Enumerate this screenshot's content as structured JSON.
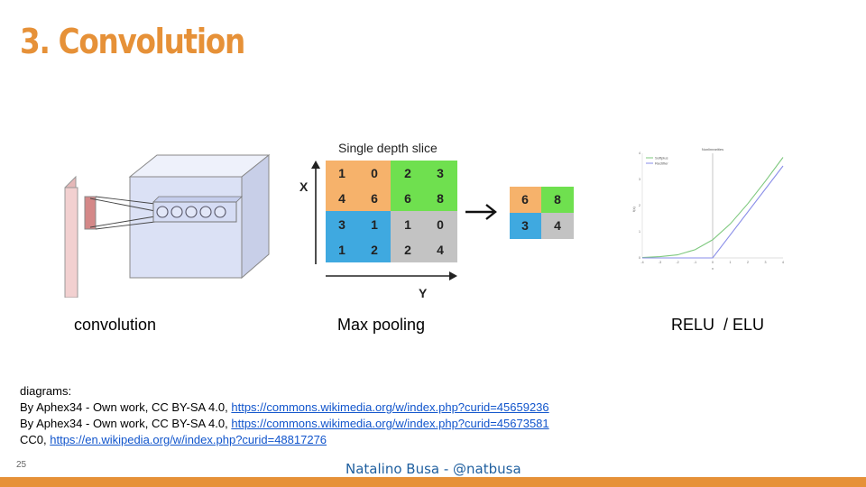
{
  "slide": {
    "title": "3. Convolution",
    "number": "25",
    "author": "Natalino Busa - @natbusa",
    "accent_color": "#e69138"
  },
  "figures": {
    "convolution": {
      "caption": "convolution"
    },
    "max_pooling": {
      "caption": "Max pooling",
      "heading": "Single depth slice",
      "x_axis_label": "X",
      "y_axis_label": "Y",
      "input_grid": [
        [
          "1",
          "0",
          "2",
          "3"
        ],
        [
          "4",
          "6",
          "6",
          "8"
        ],
        [
          "3",
          "1",
          "1",
          "0"
        ],
        [
          "1",
          "2",
          "2",
          "4"
        ]
      ],
      "output_grid": [
        [
          "6",
          "8"
        ],
        [
          "3",
          "4"
        ]
      ],
      "quadrant_colors": {
        "top_left": "#f6b26b",
        "top_right": "#6fe04f",
        "bottom_left": "#3fa9e0",
        "bottom_right": "#c3c3c3"
      }
    },
    "activation": {
      "caption": "RELU  / ELU",
      "plot_title": "Nonlinearities",
      "legend": [
        {
          "name": "Softplus",
          "color": "#7ec87e"
        },
        {
          "name": "Rectifier",
          "color": "#8a8ee8"
        }
      ],
      "x_ticks": [
        "-4",
        "-3",
        "-2",
        "-1",
        "0",
        "1",
        "2",
        "3",
        "4"
      ],
      "y_ticks": [
        "0",
        "1",
        "2",
        "3",
        "4"
      ],
      "ylabel": "f(x)",
      "xlabel": "x"
    }
  },
  "credits": {
    "heading": "diagrams:",
    "lines": [
      {
        "text": "By Aphex34 - Own work, CC BY-SA 4.0, ",
        "link": "https://commons.wikimedia.org/w/index.php?curid=45659236"
      },
      {
        "text": "By Aphex34 - Own work, CC BY-SA 4.0, ",
        "link": "https://commons.wikimedia.org/w/index.php?curid=45673581"
      },
      {
        "text": "CC0, ",
        "link": "https://en.wikipedia.org/w/index.php?curid=48817276"
      }
    ]
  }
}
